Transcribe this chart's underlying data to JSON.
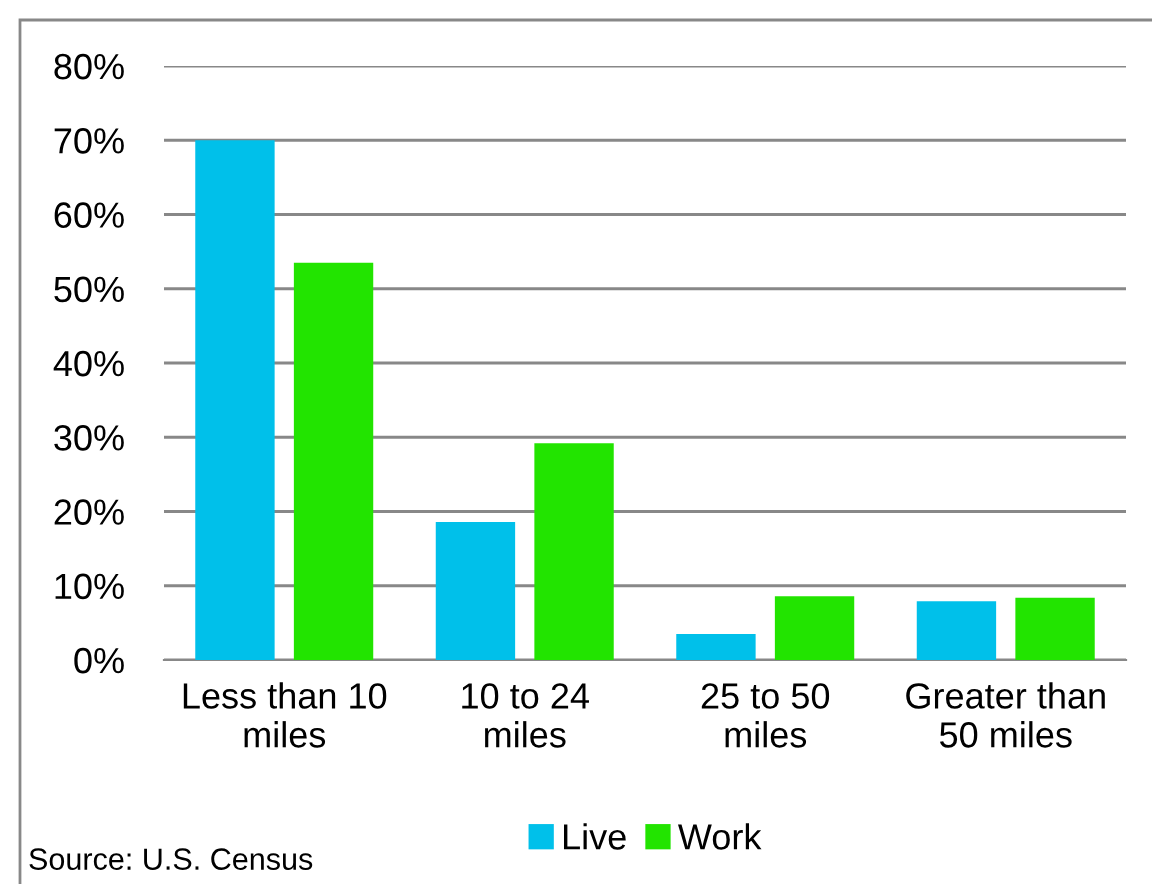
{
  "chart_data": {
    "type": "bar",
    "categories": [
      "Less than 10\nmiles",
      "10 to 24\nmiles",
      "25 to 50\nmiles",
      "Greater than\n50 miles"
    ],
    "series": [
      {
        "name": "Live",
        "color": "#00c0ea",
        "values": [
          70,
          18.6,
          3.5,
          7.9
        ]
      },
      {
        "name": "Work",
        "color": "#22e400",
        "values": [
          53.5,
          29.2,
          8.6,
          8.4
        ]
      }
    ],
    "ylim": [
      0,
      80
    ],
    "yticks": [
      {
        "value": 0,
        "label": "0%"
      },
      {
        "value": 10,
        "label": "10%"
      },
      {
        "value": 20,
        "label": "20%"
      },
      {
        "value": 30,
        "label": "30%"
      },
      {
        "value": 40,
        "label": "40%"
      },
      {
        "value": 50,
        "label": "50%"
      },
      {
        "value": 60,
        "label": "60%"
      },
      {
        "value": 70,
        "label": "70%"
      },
      {
        "value": 80,
        "label": "80%"
      }
    ],
    "grid": "y",
    "legend": "bottom",
    "annotations": [
      "Source: U.S. Census"
    ]
  }
}
